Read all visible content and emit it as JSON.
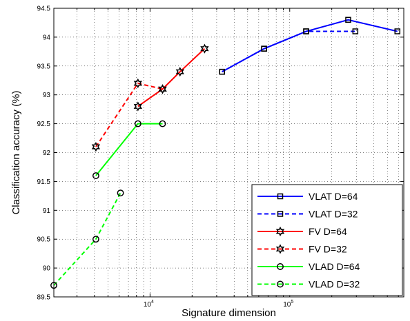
{
  "chart_data": {
    "type": "line",
    "xlabel": "Signature dimension",
    "ylabel": "Classification accuracy (%)",
    "xscale": "log",
    "xlim": [
      2048,
      655360
    ],
    "ylim": [
      89.5,
      94.5
    ],
    "grid": true,
    "legend_position": "bottom-right",
    "yticks": [
      89.5,
      90,
      90.5,
      91,
      91.5,
      92,
      92.5,
      93,
      93.5,
      94,
      94.5
    ],
    "ytick_labels": [
      "89.5",
      "90",
      "90.5",
      "91",
      "91.5",
      "92",
      "92.5",
      "93",
      "93.5",
      "94",
      "94.5"
    ],
    "xticks_major": [
      {
        "value": 10000,
        "base": "10",
        "exp": "4"
      },
      {
        "value": 100000,
        "base": "10",
        "exp": "5"
      }
    ],
    "series": [
      {
        "name": "VLAT D=64",
        "color": "#0000ff",
        "dash": "solid",
        "marker": "square",
        "x": [
          32768,
          65536,
          131072,
          262144,
          589824
        ],
        "y": [
          93.4,
          93.8,
          94.1,
          94.3,
          94.1
        ]
      },
      {
        "name": "VLAT D=32",
        "color": "#0000ff",
        "dash": "dashed",
        "marker": "square",
        "x": [
          32768,
          65536,
          131072,
          294912
        ],
        "y": [
          93.4,
          93.8,
          94.1,
          94.1
        ]
      },
      {
        "name": "FV D=64",
        "color": "#ff0000",
        "dash": "solid",
        "marker": "star",
        "x": [
          8192,
          12288,
          16384,
          24576
        ],
        "y": [
          92.8,
          93.1,
          93.4,
          93.8
        ]
      },
      {
        "name": "FV D=32",
        "color": "#ff0000",
        "dash": "dashed",
        "marker": "star",
        "x": [
          4096,
          8192,
          12288
        ],
        "y": [
          92.1,
          93.2,
          93.1
        ]
      },
      {
        "name": "VLAD D=64",
        "color": "#00ff00",
        "dash": "solid",
        "marker": "circle",
        "x": [
          4096,
          8192,
          12288
        ],
        "y": [
          91.6,
          92.5,
          92.5
        ]
      },
      {
        "name": "VLAD D=32",
        "color": "#00ff00",
        "dash": "dashed",
        "marker": "circle",
        "x": [
          2048,
          4096,
          6144
        ],
        "y": [
          89.7,
          90.5,
          91.3
        ]
      }
    ]
  }
}
